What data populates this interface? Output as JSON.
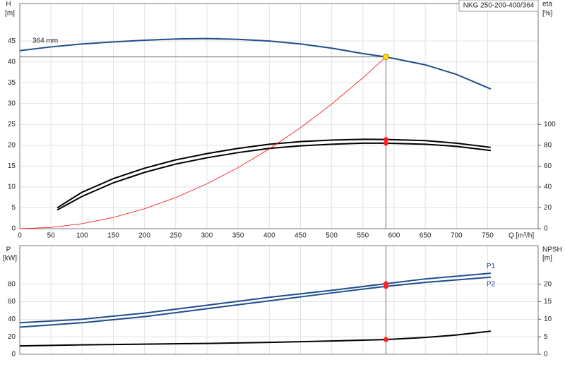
{
  "chart_data": [
    {
      "type": "line",
      "title": "NKG 250-200-400/364",
      "y_label": "H",
      "y_unit": "[m]",
      "y2_label": "eta",
      "y2_unit": "[%]",
      "x_label": "Q [m³/h]",
      "xlim": [
        0,
        831
      ],
      "ylim": [
        0,
        54
      ],
      "y2lim": [
        0,
        216
      ],
      "grid": true,
      "xticks": [
        0,
        50,
        100,
        150,
        200,
        250,
        300,
        350,
        400,
        450,
        500,
        550,
        600,
        650,
        700,
        750
      ],
      "yticks": [
        0,
        5,
        10,
        15,
        20,
        25,
        30,
        35,
        40,
        45
      ],
      "y2ticks": [
        0,
        20,
        40,
        60,
        80,
        100
      ],
      "operating_point": {
        "x": 587,
        "y": 41.2
      },
      "series": [
        {
          "name": "364 mm",
          "color": "#1f4e8c",
          "x": [
            0,
            50,
            100,
            150,
            200,
            250,
            300,
            350,
            400,
            450,
            500,
            550,
            587,
            650,
            700,
            755
          ],
          "values": [
            42.7,
            43.6,
            44.3,
            44.8,
            45.2,
            45.5,
            45.6,
            45.4,
            45.0,
            44.3,
            43.3,
            42.0,
            41.2,
            39.3,
            37.0,
            33.5
          ]
        },
        {
          "color": "#000000",
          "axis": "y2",
          "x": [
            60,
            100,
            150,
            200,
            250,
            300,
            350,
            400,
            450,
            500,
            550,
            587,
            650,
            700,
            755
          ],
          "values": [
            20,
            35,
            48,
            58,
            66,
            72,
            77,
            81,
            83.5,
            85,
            85.7,
            85.6,
            84.5,
            82,
            78
          ]
        },
        {
          "color": "#000000",
          "axis": "y2",
          "x": [
            60,
            100,
            150,
            200,
            250,
            300,
            350,
            400,
            450,
            500,
            550,
            587,
            650,
            700,
            755
          ],
          "values": [
            18,
            31,
            44,
            54,
            62,
            68,
            73,
            77,
            79.5,
            81,
            82,
            82,
            81,
            79,
            75
          ]
        },
        {
          "color": "#ff0000",
          "x": [
            0,
            50,
            100,
            150,
            200,
            250,
            300,
            350,
            400,
            450,
            500,
            550,
            587
          ],
          "values": [
            0,
            0.3,
            1.2,
            2.69,
            4.78,
            7.47,
            10.76,
            14.65,
            19.13,
            24.21,
            29.89,
            36.17,
            41.2
          ]
        }
      ]
    },
    {
      "type": "line",
      "y_label": "P",
      "y_unit": "[kW]",
      "y2_label": "NPSH",
      "y2_unit": "[m]",
      "xlim": [
        0,
        831
      ],
      "ylim": [
        0,
        124
      ],
      "y2lim": [
        0,
        31
      ],
      "grid": true,
      "xticks": [
        0,
        50,
        100,
        150,
        200,
        250,
        300,
        350,
        400,
        450,
        500,
        550,
        600,
        650,
        700,
        750
      ],
      "yticks": [
        0,
        20,
        40,
        60,
        80
      ],
      "y2ticks": [
        0,
        5,
        10,
        15,
        20
      ],
      "series": [
        {
          "name": "P1",
          "color": "#1f4e8c",
          "x": [
            0,
            100,
            200,
            300,
            400,
            500,
            587,
            650,
            755
          ],
          "values": [
            36,
            40,
            47,
            56,
            65,
            73,
            80.5,
            86,
            92.5
          ]
        },
        {
          "name": "P2",
          "color": "#1f4e8c",
          "x": [
            0,
            100,
            200,
            300,
            400,
            500,
            587,
            650,
            755
          ],
          "values": [
            31,
            36,
            43,
            52,
            61,
            70,
            77.5,
            82,
            88
          ]
        },
        {
          "color": "#000000",
          "axis": "y2",
          "x": [
            0,
            100,
            200,
            300,
            400,
            500,
            587,
            650,
            700,
            755
          ],
          "values": [
            2.4,
            2.7,
            2.9,
            3.1,
            3.4,
            3.8,
            4.2,
            4.8,
            5.5,
            6.6
          ]
        }
      ]
    }
  ]
}
